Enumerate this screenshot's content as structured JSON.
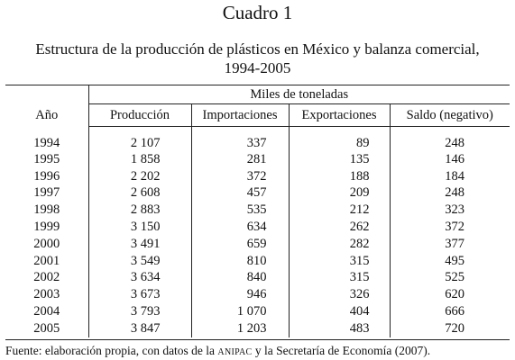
{
  "title": "Cuadro 1",
  "subtitle_line1": "Estructura de la producción de plásticos en México y balanza comercial,",
  "subtitle_line2": "1994-2005",
  "table": {
    "group_header": "Miles de toneladas",
    "year_header": "Año",
    "columns": [
      "Producción",
      "Importaciones",
      "Exportaciones",
      "Saldo (negativo)"
    ],
    "rows": [
      {
        "year": "1994",
        "produccion": "2 107",
        "importaciones": "337",
        "exportaciones": "89",
        "saldo": "248"
      },
      {
        "year": "1995",
        "produccion": "1 858",
        "importaciones": "281",
        "exportaciones": "135",
        "saldo": "146"
      },
      {
        "year": "1996",
        "produccion": "2 202",
        "importaciones": "372",
        "exportaciones": "188",
        "saldo": "184"
      },
      {
        "year": "1997",
        "produccion": "2 608",
        "importaciones": "457",
        "exportaciones": "209",
        "saldo": "248"
      },
      {
        "year": "1998",
        "produccion": "2 883",
        "importaciones": "535",
        "exportaciones": "212",
        "saldo": "323"
      },
      {
        "year": "1999",
        "produccion": "3 150",
        "importaciones": "634",
        "exportaciones": "262",
        "saldo": "372"
      },
      {
        "year": "2000",
        "produccion": "3 491",
        "importaciones": "659",
        "exportaciones": "282",
        "saldo": "377"
      },
      {
        "year": "2001",
        "produccion": "3 549",
        "importaciones": "810",
        "exportaciones": "315",
        "saldo": "495"
      },
      {
        "year": "2002",
        "produccion": "3 634",
        "importaciones": "840",
        "exportaciones": "315",
        "saldo": "525"
      },
      {
        "year": "2003",
        "produccion": "3 673",
        "importaciones": "946",
        "exportaciones": "326",
        "saldo": "620"
      },
      {
        "year": "2004",
        "produccion": "3 793",
        "importaciones": "1 070",
        "exportaciones": "404",
        "saldo": "666"
      },
      {
        "year": "2005",
        "produccion": "3 847",
        "importaciones": "1 203",
        "exportaciones": "483",
        "saldo": "720"
      }
    ]
  },
  "footer": {
    "prefix": "Fuente: elaboración propia, con datos de la ",
    "acronym": "ANIPAC",
    "suffix": " y la Secretaría de Economía (2007)."
  }
}
